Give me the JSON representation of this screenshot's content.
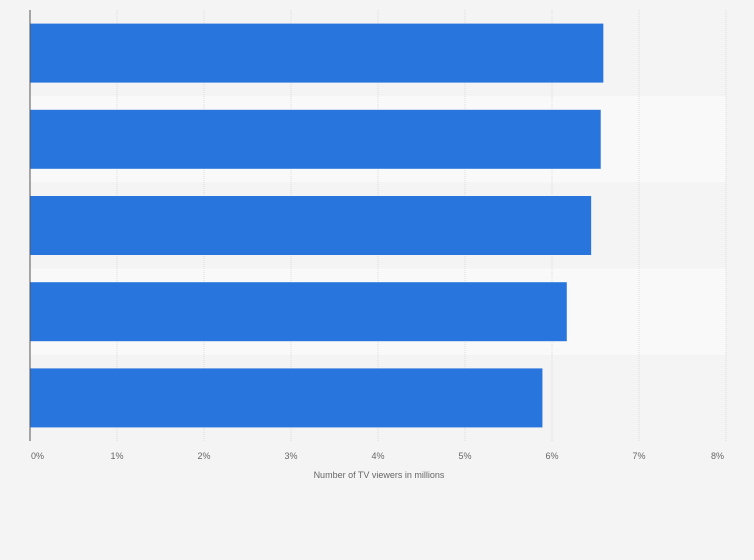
{
  "chart_data": {
    "type": "bar",
    "orientation": "horizontal",
    "categories": [
      "",
      "",
      "",
      "",
      ""
    ],
    "values": [
      6.59,
      6.56,
      6.45,
      6.17,
      5.89
    ],
    "xlabel": "Number of TV viewers in millions",
    "ylabel": "",
    "xlim": [
      0,
      8
    ],
    "x_ticks": [
      "0%",
      "1%",
      "2%",
      "3%",
      "4%",
      "5%",
      "6%",
      "7%",
      "8%"
    ],
    "grid": true,
    "legend": "none",
    "colors": {
      "bar": "#2876dd",
      "background": "#f4f4f4",
      "band_alt": "#f9f9f9",
      "grid": "#dddddd",
      "axis": "#555555",
      "text": "#666666"
    }
  }
}
